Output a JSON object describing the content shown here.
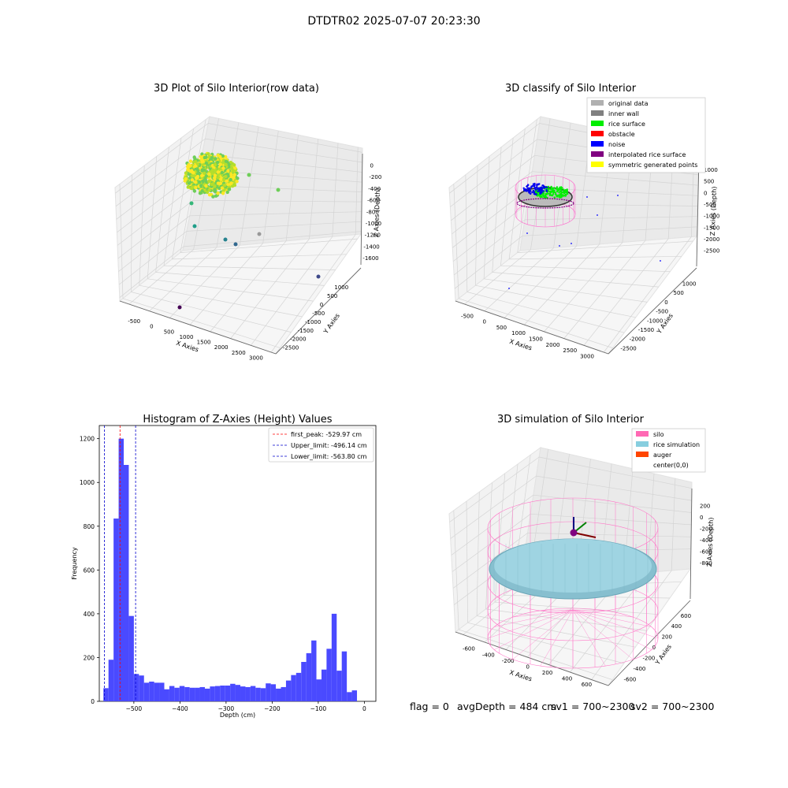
{
  "suptitle": "DTDTR02 2025-07-07 20:23:30",
  "footer": {
    "flag": "flag = 0",
    "avg_depth": "avgDepth = 484 cm",
    "sv1": "sv1 = 700~2300",
    "sv2": "sv2 = 700~2300"
  },
  "chart_data": [
    {
      "type": "scatter",
      "subtype": "3d",
      "title": "3D Plot of Silo Interior(row data)",
      "xlabel": "X Axies",
      "ylabel": "Y Axies",
      "zlabel": "Z Axies (Depth)",
      "x_ticks": [
        "-500",
        "0",
        "500",
        "1000",
        "1500",
        "2000",
        "2500",
        "3000"
      ],
      "y_ticks": [
        "1000",
        "500",
        "0",
        "-500",
        "-1000",
        "-1500",
        "-2000",
        "-2500"
      ],
      "z_ticks": [
        "0",
        "-200",
        "-400",
        "-600",
        "-800",
        "-1000",
        "-1200",
        "-1400",
        "-1600"
      ],
      "colormap": "viridis",
      "grid": true
    },
    {
      "type": "scatter",
      "subtype": "3d",
      "title": "3D classify of Silo Interior",
      "xlabel": "X Axies",
      "ylabel": "Y Axies",
      "zlabel": "Z Axies (Depth)",
      "x_ticks": [
        "-500",
        "0",
        "500",
        "1000",
        "1500",
        "2000",
        "2500",
        "3000"
      ],
      "y_ticks": [
        "1000",
        "500",
        "0",
        "-500",
        "-1000",
        "-1500",
        "-2000",
        "-2500"
      ],
      "z_ticks": [
        "1000",
        "500",
        "0",
        "-500",
        "-1000",
        "-1500",
        "-2000",
        "-2500"
      ],
      "legend_position": "top-right",
      "legend": [
        {
          "label": "original data",
          "color": "#b0b0b0"
        },
        {
          "label": "inner wall",
          "color": "#808080"
        },
        {
          "label": "rice surface",
          "color": "#00ee00"
        },
        {
          "label": "obstacle",
          "color": "#ff0000"
        },
        {
          "label": "noise",
          "color": "#0000ff"
        },
        {
          "label": "interpolated rice surface",
          "color": "#800080"
        },
        {
          "label": "symmetric generated points",
          "color": "#ffff00"
        }
      ],
      "grid": true
    },
    {
      "type": "bar",
      "subtype": "histogram",
      "title": "Histogram of Z-Axies (Height) Values",
      "xlabel": "Depth (cm)",
      "ylabel": "Frequency",
      "xlim": [
        -575,
        25
      ],
      "ylim": [
        0,
        1260
      ],
      "x_ticks": [
        -500,
        -400,
        -300,
        -200,
        -100,
        0
      ],
      "y_ticks": [
        0,
        200,
        400,
        600,
        800,
        1000,
        1200
      ],
      "bar_color": "#4a4aff",
      "bins": [
        {
          "x0": -566,
          "x1": -555,
          "v": 60
        },
        {
          "x0": -555,
          "x1": -544,
          "v": 190
        },
        {
          "x0": -544,
          "x1": -533,
          "v": 835
        },
        {
          "x0": -533,
          "x1": -522,
          "v": 1200
        },
        {
          "x0": -522,
          "x1": -511,
          "v": 1080
        },
        {
          "x0": -511,
          "x1": -500,
          "v": 390
        },
        {
          "x0": -500,
          "x1": -489,
          "v": 125
        },
        {
          "x0": -489,
          "x1": -478,
          "v": 118
        },
        {
          "x0": -478,
          "x1": -467,
          "v": 85
        },
        {
          "x0": -467,
          "x1": -456,
          "v": 90
        },
        {
          "x0": -456,
          "x1": -445,
          "v": 85
        },
        {
          "x0": -445,
          "x1": -434,
          "v": 85
        },
        {
          "x0": -434,
          "x1": -423,
          "v": 55
        },
        {
          "x0": -423,
          "x1": -412,
          "v": 70
        },
        {
          "x0": -412,
          "x1": -401,
          "v": 62
        },
        {
          "x0": -401,
          "x1": -390,
          "v": 70
        },
        {
          "x0": -390,
          "x1": -379,
          "v": 65
        },
        {
          "x0": -379,
          "x1": -368,
          "v": 62
        },
        {
          "x0": -368,
          "x1": -357,
          "v": 62
        },
        {
          "x0": -357,
          "x1": -346,
          "v": 65
        },
        {
          "x0": -346,
          "x1": -335,
          "v": 58
        },
        {
          "x0": -335,
          "x1": -324,
          "v": 68
        },
        {
          "x0": -324,
          "x1": -313,
          "v": 70
        },
        {
          "x0": -313,
          "x1": -302,
          "v": 72
        },
        {
          "x0": -302,
          "x1": -291,
          "v": 72
        },
        {
          "x0": -291,
          "x1": -280,
          "v": 80
        },
        {
          "x0": -280,
          "x1": -269,
          "v": 75
        },
        {
          "x0": -269,
          "x1": -258,
          "v": 68
        },
        {
          "x0": -258,
          "x1": -247,
          "v": 65
        },
        {
          "x0": -247,
          "x1": -236,
          "v": 70
        },
        {
          "x0": -236,
          "x1": -225,
          "v": 62
        },
        {
          "x0": -225,
          "x1": -214,
          "v": 60
        },
        {
          "x0": -214,
          "x1": -203,
          "v": 82
        },
        {
          "x0": -203,
          "x1": -192,
          "v": 78
        },
        {
          "x0": -192,
          "x1": -181,
          "v": 58
        },
        {
          "x0": -181,
          "x1": -170,
          "v": 65
        },
        {
          "x0": -170,
          "x1": -159,
          "v": 95
        },
        {
          "x0": -159,
          "x1": -148,
          "v": 120
        },
        {
          "x0": -148,
          "x1": -137,
          "v": 130
        },
        {
          "x0": -137,
          "x1": -126,
          "v": 180
        },
        {
          "x0": -126,
          "x1": -115,
          "v": 220
        },
        {
          "x0": -115,
          "x1": -104,
          "v": 278
        },
        {
          "x0": -104,
          "x1": -93,
          "v": 100
        },
        {
          "x0": -93,
          "x1": -82,
          "v": 145
        },
        {
          "x0": -82,
          "x1": -71,
          "v": 240
        },
        {
          "x0": -71,
          "x1": -60,
          "v": 400
        },
        {
          "x0": -60,
          "x1": -49,
          "v": 140
        },
        {
          "x0": -49,
          "x1": -38,
          "v": 228
        },
        {
          "x0": -38,
          "x1": -27,
          "v": 42
        },
        {
          "x0": -27,
          "x1": -16,
          "v": 50
        }
      ],
      "vlines": [
        {
          "label": "first_peak: -529.97 cm",
          "x": -529.97,
          "color": "#ff0000"
        },
        {
          "label": "Upper_limit: -496.14 cm",
          "x": -496.14,
          "color": "#0000cc"
        },
        {
          "label": "Lower_limit: -563.80 cm",
          "x": -563.8,
          "color": "#0000cc"
        }
      ],
      "legend_position": "top-right",
      "grid": false
    },
    {
      "type": "scatter",
      "subtype": "3d-surface",
      "title": "3D simulation of Silo Interior",
      "xlabel": "X Axies",
      "ylabel": "Y Axies",
      "zlabel": "Z Axies (Depth)",
      "x_ticks": [
        "-600",
        "-400",
        "-200",
        "0",
        "200",
        "400",
        "600"
      ],
      "y_ticks": [
        "600",
        "400",
        "200",
        "0",
        "-200",
        "-400",
        "-600"
      ],
      "z_ticks": [
        "200",
        "0",
        "-200",
        "-400",
        "-600",
        "-800"
      ],
      "legend_position": "top-right",
      "legend": [
        {
          "label": "silo",
          "color": "#ff69b4"
        },
        {
          "label": "rice simulation",
          "color": "#87cedf"
        },
        {
          "label": "auger",
          "color": "#ff4500"
        },
        {
          "label": "center(0,0)",
          "color": "#ffffff"
        }
      ],
      "grid": true
    }
  ]
}
